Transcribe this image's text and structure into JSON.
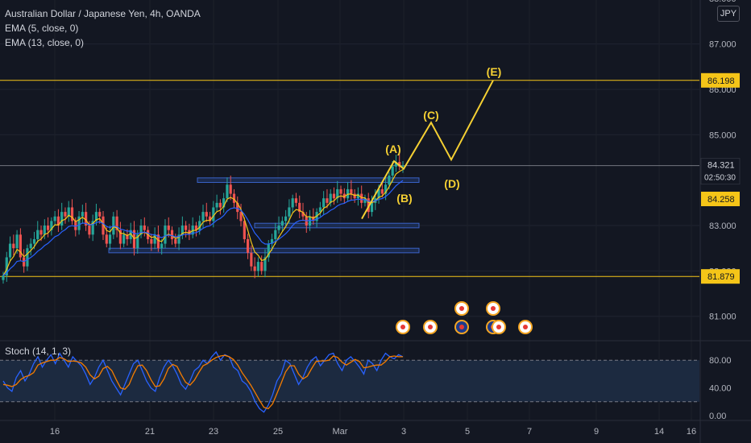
{
  "header": {
    "title": "Australian Dollar / Japanese Yen, 4h, OANDA",
    "indicators": [
      "EMA (5, close, 0)",
      "EMA (13, close, 0)"
    ]
  },
  "currency_badge": "JPY",
  "colors": {
    "background": "#131722",
    "up_candle": "#26a69a",
    "down_candle": "#ef5350",
    "ema5": "#f5c518",
    "ema13": "#2962ff",
    "wave_line": "#f5d033",
    "horizontal_line": "#f5c518",
    "zone_fill": "#1e2f57",
    "zone_border": "#3a62c7",
    "stoch_k": "#2962ff",
    "stoch_d": "#f57c00",
    "stoch_band": "#1c2a40"
  },
  "price_axis": {
    "ticks": [
      "88.000",
      "87.000",
      "86.000",
      "85.000",
      "83.000",
      "82.000",
      "81.000"
    ],
    "labels": {
      "resistance": "86.198",
      "last_price": "84.321",
      "countdown": "02:50:30",
      "support_price": "84.258",
      "lower_line": "81.879"
    }
  },
  "time_axis": {
    "ticks": [
      "16",
      "21",
      "23",
      "25",
      "Mar",
      "3",
      "5",
      "7",
      "9",
      "14",
      "16"
    ]
  },
  "annotations": [
    "(A)",
    "(B)",
    "(C)",
    "(D)",
    "(E)"
  ],
  "stochastic": {
    "label": "Stoch (14, 1, 3)",
    "ticks": [
      "80.00",
      "40.00",
      "0.00"
    ]
  },
  "chart_data": {
    "type": "candlestick",
    "title": "Australian Dollar / Japanese Yen, 4h, OANDA",
    "ylim": [
      80.8,
      88.0
    ],
    "horizontal_lines": [
      86.198,
      84.321,
      81.879
    ],
    "zones": [
      {
        "low": 83.95,
        "high": 84.05
      },
      {
        "low": 82.95,
        "high": 83.05
      },
      {
        "low": 82.4,
        "high": 82.5
      }
    ],
    "wave_projection": [
      {
        "label": "(A)",
        "price": 84.42
      },
      {
        "label": "(B)",
        "price": 84.25
      },
      {
        "label": "(C)",
        "price": 85.27
      },
      {
        "label": "(D)",
        "price": 84.45
      },
      {
        "label": "(E)",
        "price": 86.2
      }
    ],
    "closes": [
      81.9,
      82.3,
      82.6,
      82.5,
      82.8,
      82.3,
      82.1,
      82.5,
      82.6,
      82.7,
      82.9,
      82.8,
      83.0,
      82.9,
      83.1,
      83.2,
      83.0,
      83.3,
      83.2,
      83.4,
      83.1,
      82.9,
      83.2,
      83.3,
      83.0,
      82.8,
      83.1,
      83.3,
      83.2,
      82.8,
      82.6,
      82.8,
      83.2,
      82.9,
      82.6,
      82.8,
      82.7,
      82.9,
      82.5,
      82.8,
      83.0,
      82.9,
      82.7,
      82.6,
      82.8,
      82.5,
      82.6,
      83.0,
      82.9,
      82.7,
      82.6,
      82.8,
      83.0,
      82.9,
      82.8,
      83.0,
      82.9,
      83.1,
      83.3,
      83.2,
      83.1,
      83.4,
      83.5,
      83.4,
      83.6,
      83.9,
      83.7,
      83.5,
      83.3,
      83.1,
      82.7,
      82.4,
      82.1,
      82.0,
      82.2,
      82.0,
      82.3,
      82.6,
      82.7,
      82.9,
      83.0,
      83.1,
      83.2,
      83.4,
      83.6,
      83.5,
      83.3,
      83.2,
      83.0,
      83.2,
      83.1,
      83.3,
      83.4,
      83.6,
      83.5,
      83.7,
      83.6,
      83.8,
      83.7,
      83.6,
      83.8,
      83.7,
      83.6,
      83.7,
      83.5,
      83.6,
      83.3,
      83.5,
      83.6,
      83.8,
      83.7,
      83.9,
      84.1,
      84.3,
      84.4,
      84.3,
      84.32
    ],
    "stoch_k": [
      50,
      40,
      35,
      55,
      65,
      50,
      60,
      75,
      85,
      70,
      80,
      88,
      75,
      90,
      80,
      70,
      85,
      78,
      72,
      60,
      45,
      55,
      70,
      80,
      65,
      50,
      40,
      30,
      45,
      60,
      75,
      80,
      65,
      50,
      40,
      35,
      55,
      70,
      80,
      72,
      60,
      45,
      38,
      50,
      65,
      70,
      80,
      75,
      85,
      92,
      80,
      88,
      85,
      70,
      65,
      50,
      45,
      35,
      20,
      10,
      5,
      15,
      30,
      50,
      60,
      80,
      75,
      60,
      45,
      55,
      70,
      80,
      85,
      72,
      80,
      88,
      90,
      75,
      65,
      80,
      85,
      78,
      70,
      60,
      80,
      75,
      65,
      80,
      90,
      85,
      82,
      88,
      85
    ],
    "stoch_d": [
      45,
      44,
      42,
      45,
      52,
      56,
      58,
      62,
      73,
      76,
      78,
      80,
      80,
      84,
      82,
      78,
      79,
      78,
      76,
      70,
      59,
      53,
      57,
      68,
      71,
      65,
      52,
      40,
      38,
      45,
      60,
      72,
      73,
      65,
      52,
      42,
      43,
      53,
      68,
      74,
      71,
      59,
      48,
      44,
      51,
      62,
      72,
      75,
      80,
      84,
      86,
      87,
      85,
      81,
      73,
      62,
      53,
      44,
      33,
      22,
      12,
      10,
      17,
      32,
      47,
      63,
      72,
      72,
      60,
      53,
      57,
      68,
      78,
      79,
      79,
      80,
      86,
      84,
      77,
      73,
      77,
      81,
      78,
      69,
      70,
      72,
      73,
      73,
      78,
      85,
      86,
      85,
      85
    ]
  }
}
